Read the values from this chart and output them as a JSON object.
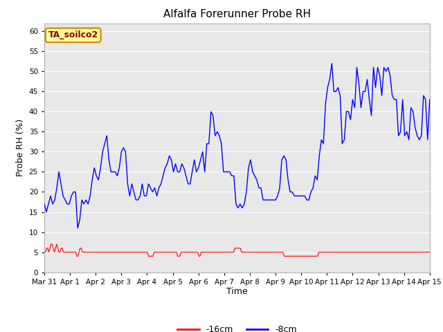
{
  "title": "Alfalfa Forerunner Probe RH",
  "ylabel": "Probe RH (%)",
  "xlabel": "Time",
  "annotation": "TA_soilco2",
  "ylim": [
    0,
    62
  ],
  "yticks": [
    0,
    5,
    10,
    15,
    20,
    25,
    30,
    35,
    40,
    45,
    50,
    55,
    60
  ],
  "bg_color": "#e8e8e8",
  "plot_bg_color": "#e8e8e8",
  "legend_labels": [
    "-16cm",
    "-8cm"
  ],
  "legend_colors": [
    "#ff0000",
    "#0000ff"
  ],
  "x_tick_labels": [
    "Mar 31",
    "Apr 1",
    "Apr 2",
    "Apr 3",
    "Apr 4",
    "Apr 5",
    "Apr 6",
    "Apr 7",
    "Apr 8",
    "Apr 9",
    "Apr 10",
    "Apr 11",
    "Apr 12",
    "Apr 13",
    "Apr 14",
    "Apr 15"
  ],
  "red_data": [
    5,
    5,
    6,
    6,
    5,
    6,
    7,
    7,
    6,
    5,
    6,
    7,
    6,
    5,
    5,
    6,
    6,
    5,
    5,
    5,
    5,
    5,
    5,
    5,
    5,
    5,
    5,
    5,
    5,
    4,
    4,
    5,
    6,
    6,
    5,
    5,
    5,
    5,
    5,
    5,
    5,
    5,
    5,
    5,
    5,
    5,
    5,
    5,
    5,
    5,
    5,
    5,
    5,
    5,
    5,
    5,
    5,
    5,
    5,
    5,
    5,
    5,
    5,
    5,
    5,
    5,
    5,
    5,
    5,
    5,
    5,
    5,
    5,
    5,
    5,
    5,
    5,
    5,
    5,
    5,
    5,
    5,
    5,
    5,
    5,
    5,
    5,
    5,
    5,
    5,
    5,
    5,
    5,
    4,
    4,
    4,
    4,
    4,
    5,
    5,
    5,
    5,
    5,
    5,
    5,
    5,
    5,
    5,
    5,
    5,
    5,
    5,
    5,
    5,
    5,
    5,
    5,
    5,
    5,
    4,
    4,
    4,
    5,
    5,
    5,
    5,
    5,
    5,
    5,
    5,
    5,
    5,
    5,
    5,
    5,
    5,
    5,
    5,
    4,
    4,
    5,
    5,
    5,
    5,
    5,
    5,
    5,
    5,
    5,
    5,
    5,
    5,
    5,
    5,
    5,
    5,
    5,
    5,
    5,
    5,
    5,
    5,
    5,
    5,
    5,
    5,
    5,
    5,
    5,
    5,
    6,
    6,
    6,
    6,
    6,
    6,
    5,
    5,
    5,
    5,
    5,
    5,
    5,
    5,
    5,
    5,
    5,
    5,
    5,
    5,
    5,
    5,
    5,
    5,
    5,
    5,
    5,
    5,
    5,
    5,
    5,
    5,
    5,
    5,
    5,
    5,
    5,
    5,
    5,
    5,
    5,
    5,
    5,
    5,
    4,
    4,
    4,
    4,
    4,
    4,
    4,
    4,
    4,
    4,
    4,
    4,
    4,
    4,
    4,
    4,
    4,
    4,
    4,
    4,
    4,
    4,
    4,
    4,
    4,
    4,
    4,
    4,
    4,
    4,
    4,
    5,
    5,
    5,
    5,
    5,
    5,
    5,
    5,
    5,
    5,
    5,
    5,
    5,
    5,
    5,
    5,
    5,
    5,
    5,
    5,
    5,
    5,
    5,
    5,
    5,
    5,
    5,
    5,
    5,
    5,
    5,
    5,
    5,
    5,
    5,
    5,
    5,
    5,
    5,
    5,
    5,
    5,
    5,
    5,
    5,
    5,
    5,
    5,
    5,
    5,
    5,
    5,
    5,
    5,
    5,
    5,
    5,
    5,
    5,
    5,
    5,
    5,
    5,
    5,
    5,
    5,
    5,
    5,
    5,
    5,
    5,
    5,
    5,
    5,
    5,
    5,
    5,
    5,
    5,
    5,
    5,
    5,
    5,
    5,
    5,
    5,
    5,
    5,
    5,
    5,
    5,
    5,
    5,
    5,
    5,
    5,
    5,
    5,
    5,
    5
  ],
  "blue_data": [
    17,
    15,
    17,
    19,
    17,
    18,
    21,
    25,
    22,
    19,
    18,
    17,
    17,
    19,
    20,
    20,
    11,
    13,
    18,
    17,
    18,
    17,
    19,
    23,
    26,
    24,
    23,
    26,
    30,
    32,
    34,
    28,
    25,
    25,
    25,
    24,
    26,
    30,
    31,
    30,
    22,
    19,
    22,
    20,
    18,
    18,
    19,
    22,
    19,
    19,
    22,
    21,
    20,
    21,
    19,
    21,
    22,
    24,
    26,
    27,
    29,
    28,
    25,
    27,
    25,
    25,
    27,
    26,
    24,
    22,
    22,
    25,
    28,
    25,
    26,
    28,
    30,
    25,
    32,
    32,
    40,
    39,
    34,
    35,
    34,
    32,
    25,
    25,
    25,
    25,
    24,
    24,
    17,
    16,
    17,
    16,
    17,
    20,
    26,
    28,
    25,
    24,
    23,
    21,
    21,
    18,
    18,
    18,
    18,
    18,
    18,
    18,
    19,
    21,
    28,
    29,
    28,
    23,
    20,
    20,
    19,
    19,
    19,
    19,
    19,
    19,
    18,
    18,
    20,
    21,
    24,
    23,
    29,
    33,
    32,
    42,
    46,
    48,
    52,
    45,
    45,
    46,
    44,
    32,
    33,
    40,
    40,
    38,
    43,
    41,
    51,
    47,
    41,
    45,
    45,
    48,
    43,
    39,
    51,
    46,
    51,
    49,
    44,
    51,
    50,
    51,
    49,
    44,
    43,
    43,
    34,
    35,
    43,
    34,
    35,
    33,
    41,
    40,
    36,
    34,
    33,
    34,
    44,
    43,
    33,
    43
  ]
}
